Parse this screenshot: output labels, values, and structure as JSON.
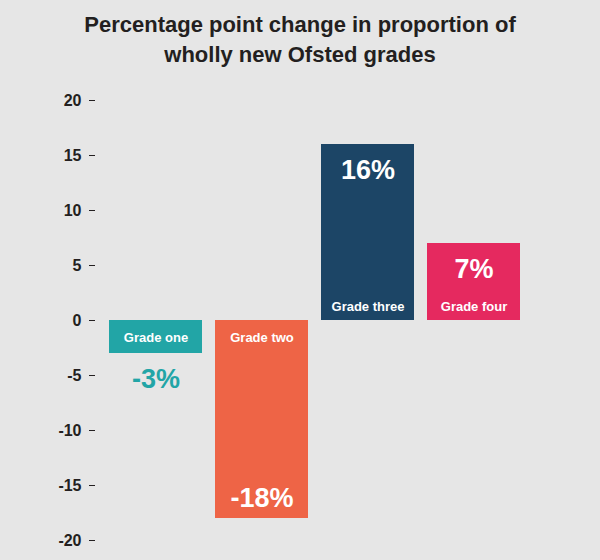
{
  "chart_data": {
    "type": "bar",
    "title": "Percentage point change in proportion of wholly new Ofsted grades",
    "categories": [
      "Grade one",
      "Grade two",
      "Grade three",
      "Grade four"
    ],
    "values": [
      -3,
      -18,
      16,
      7
    ],
    "value_labels": [
      "-3%",
      "-18%",
      "16%",
      "7%"
    ],
    "colors": [
      "#22a5a6",
      "#ee6446",
      "#1c4566",
      "#e5295f"
    ],
    "ylim": [
      -20,
      20
    ],
    "yticks": [
      -20,
      -15,
      -10,
      -5,
      0,
      5,
      10,
      15,
      20
    ],
    "grid": false,
    "data_labels": true,
    "tick_labels": "y"
  }
}
